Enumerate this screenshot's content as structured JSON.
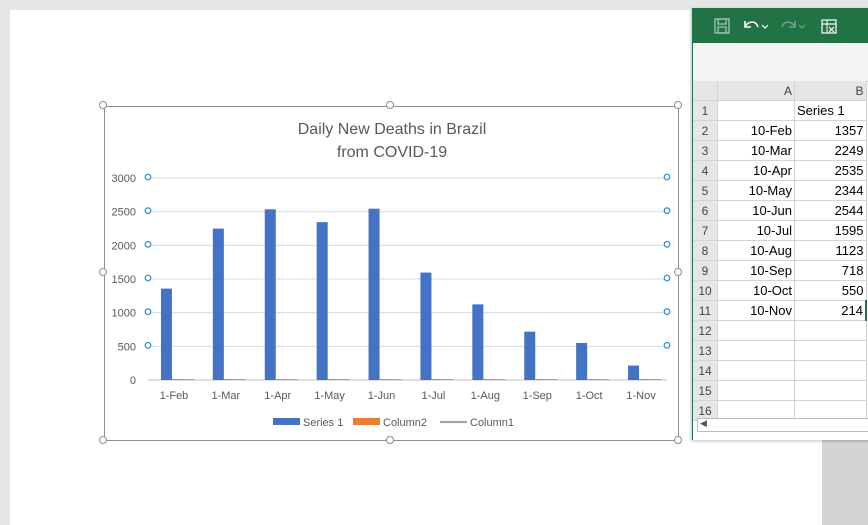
{
  "chart_data": {
    "type": "bar",
    "title": "Daily New Deaths in Brazil from COVID-19",
    "title_lines": [
      "Daily New Deaths in Brazil",
      "from COVID-19"
    ],
    "categories": [
      "1-Feb",
      "1-Mar",
      "1-Apr",
      "1-May",
      "1-Jun",
      "1-Jul",
      "1-Aug",
      "1-Sep",
      "1-Oct",
      "1-Nov"
    ],
    "series": [
      {
        "name": "Series 1",
        "values": [
          1357,
          2249,
          2535,
          2344,
          2544,
          1595,
          1123,
          718,
          550,
          214
        ],
        "color": "#4472c4"
      },
      {
        "name": "Column2",
        "values": [
          0,
          0,
          0,
          0,
          0,
          0,
          0,
          0,
          0,
          0
        ],
        "color": "#ed7d31"
      },
      {
        "name": "Column1",
        "values": [
          0,
          0,
          0,
          0,
          0,
          0,
          0,
          0,
          0,
          0
        ],
        "color": "#a5a5a5"
      }
    ],
    "y_ticks": [
      0,
      500,
      1000,
      1500,
      2000,
      2500,
      3000
    ],
    "ylim": [
      0,
      3000
    ],
    "xlabel": "",
    "ylabel": "",
    "grid": true,
    "legend_position": "bottom"
  },
  "spreadsheet": {
    "column_headers": [
      "A",
      "B"
    ],
    "row_numbers": [
      "1",
      "2",
      "3",
      "4",
      "5",
      "6",
      "7",
      "8",
      "9",
      "10",
      "11",
      "12",
      "13",
      "14",
      "15",
      "16"
    ],
    "header_row": {
      "a": "",
      "b": "Series 1"
    },
    "rows": [
      {
        "a": "10-Feb",
        "b": "1357"
      },
      {
        "a": "10-Mar",
        "b": "2249"
      },
      {
        "a": "10-Apr",
        "b": "2535"
      },
      {
        "a": "10-May",
        "b": "2344"
      },
      {
        "a": "10-Jun",
        "b": "2544"
      },
      {
        "a": "10-Jul",
        "b": "1595"
      },
      {
        "a": "10-Aug",
        "b": "1123"
      },
      {
        "a": "10-Sep",
        "b": "718"
      },
      {
        "a": "10-Oct",
        "b": "550"
      },
      {
        "a": "10-Nov",
        "b": "214"
      }
    ],
    "toolbar_icons": [
      "save-icon",
      "undo-icon",
      "redo-icon",
      "edit-data-icon"
    ],
    "accent_color": "#217346"
  }
}
